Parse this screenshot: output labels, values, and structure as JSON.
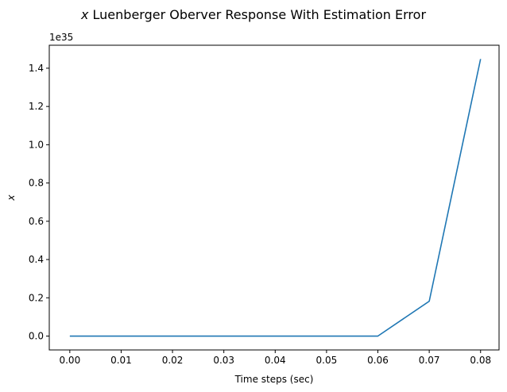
{
  "chart_data": {
    "type": "line",
    "title_var": "x",
    "title_rest": " Luenberger Oberver Response With Estimation Error",
    "xlabel": "Time steps (sec)",
    "ylabel": "x",
    "y_offset_label": "1e35",
    "xlim": [
      -0.004,
      0.0836
    ],
    "ylim": [
      -0.0725,
      1.52
    ],
    "x_ticks": [
      0.0,
      0.01,
      0.02,
      0.03,
      0.04,
      0.05,
      0.06,
      0.07,
      0.08
    ],
    "x_tick_labels": [
      "0.00",
      "0.01",
      "0.02",
      "0.03",
      "0.04",
      "0.05",
      "0.06",
      "0.07",
      "0.08"
    ],
    "y_ticks": [
      0.0,
      0.2,
      0.4,
      0.6,
      0.8,
      1.0,
      1.2,
      1.4
    ],
    "y_tick_labels": [
      "0.0",
      "0.2",
      "0.4",
      "0.6",
      "0.8",
      "1.0",
      "1.2",
      "1.4"
    ],
    "grid": false,
    "series": [
      {
        "color": "#1f77b4",
        "x": [
          0.0,
          0.01,
          0.02,
          0.03,
          0.04,
          0.05,
          0.06,
          0.07,
          0.08
        ],
        "y": [
          0,
          0,
          0,
          0,
          0,
          0,
          0,
          0.182,
          1.448
        ]
      }
    ]
  }
}
